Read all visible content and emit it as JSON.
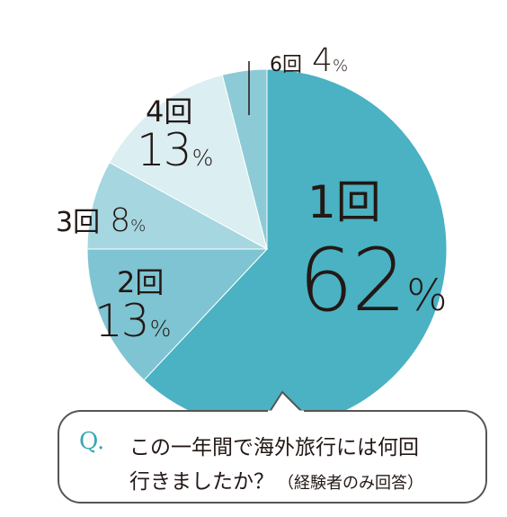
{
  "chart_data": {
    "type": "pie",
    "categories": [
      "1回",
      "2回",
      "3回",
      "4回",
      "6回"
    ],
    "values": [
      62,
      13,
      8,
      13,
      4
    ],
    "percent_labels": [
      "62",
      "13",
      "8",
      "13",
      "4"
    ],
    "percent_sign": "%",
    "colors": [
      "#4ab2c2",
      "#7fc4d2",
      "#a6d6e0",
      "#dbeef2",
      "#8ccad6"
    ],
    "start_angle_deg": 0,
    "direction": "clockwise"
  },
  "question": {
    "mark": "Q.",
    "line1": "この一年間で海外旅行には何回",
    "line2": "行きましたか？",
    "note": "（経験者のみ回答）"
  }
}
